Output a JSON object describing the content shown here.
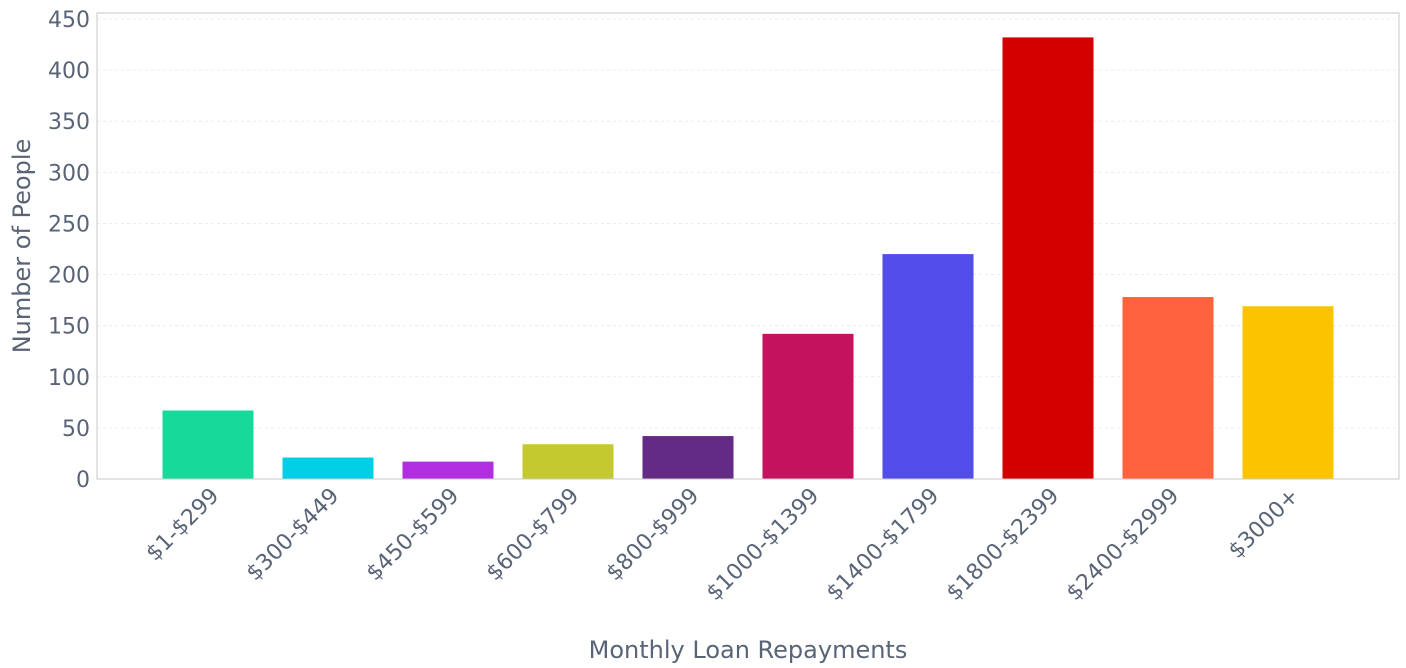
{
  "chart_data": {
    "type": "bar",
    "title": "",
    "xlabel": "Monthly Loan Repayments",
    "ylabel": "Number of People",
    "ylim": [
      0,
      450
    ],
    "yticks": [
      0,
      50,
      100,
      150,
      200,
      250,
      300,
      350,
      400,
      450
    ],
    "grid": true,
    "categories": [
      "$1-$299",
      "$300-$449",
      "$450-$599",
      "$600-$799",
      "$800-$999",
      "$1000-$1399",
      "$1400-$1799",
      "$1800-$2399",
      "$2400-$2999",
      "$3000+"
    ],
    "values": [
      67,
      21,
      17,
      34,
      42,
      142,
      220,
      432,
      178,
      169
    ],
    "colors": [
      "#16d99a",
      "#00cfe5",
      "#b12ee0",
      "#c4c92f",
      "#632a86",
      "#c4125f",
      "#524de9",
      "#d40000",
      "#ff623d",
      "#fbc300"
    ]
  }
}
